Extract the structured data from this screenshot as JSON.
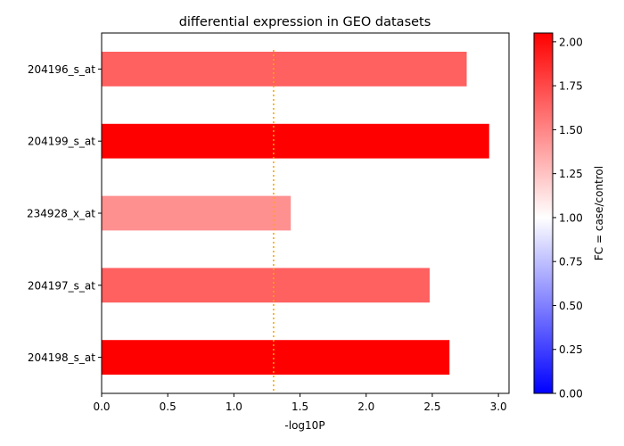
{
  "chart_data": {
    "type": "bar",
    "orientation": "horizontal",
    "title": "differential expression in GEO datasets",
    "xlabel": "-log10P",
    "ylabel": "",
    "xlim": [
      0,
      3.08
    ],
    "xticks": [
      "0.0",
      "0.5",
      "1.0",
      "1.5",
      "2.0",
      "2.5",
      "3.0"
    ],
    "categories": [
      "204196_s_at",
      "204199_s_at",
      "234928_x_at",
      "204197_s_at",
      "204198_s_at"
    ],
    "values": [
      2.76,
      2.93,
      1.43,
      2.48,
      2.63
    ],
    "fold_change": [
      1.65,
      2.05,
      1.45,
      1.65,
      2.05
    ],
    "bar_colors": [
      "#ff6060",
      "#ff0000",
      "#ff9090",
      "#ff6060",
      "#ff0000"
    ],
    "threshold": {
      "x": 1.3,
      "color": "#ffa500",
      "style": "dotted"
    },
    "colorbar": {
      "label": "FC = case/control",
      "range": [
        0.0,
        2.05
      ],
      "ticks": [
        "0.00",
        "0.25",
        "0.50",
        "0.75",
        "1.00",
        "1.25",
        "1.50",
        "1.75",
        "2.00"
      ],
      "tick_values": [
        0,
        0.25,
        0.5,
        0.75,
        1.0,
        1.25,
        1.5,
        1.75,
        2.0
      ],
      "colormap": "bwr",
      "color_low": "#0000ff",
      "color_mid": "#ffffff",
      "color_high": "#ff0000"
    }
  }
}
